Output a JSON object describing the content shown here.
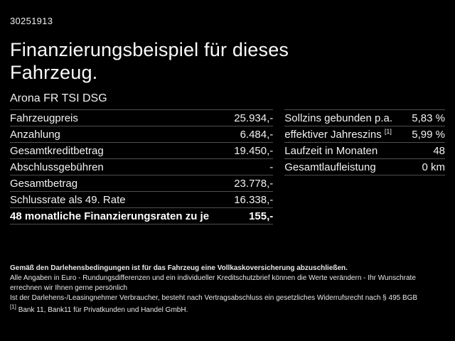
{
  "colors": {
    "background": "#000000",
    "text": "#f5f5f5",
    "divider": "#4f4f4f"
  },
  "header": {
    "vehicle_id": "30251913",
    "title": "Finanzierungsbeispiel für dieses Fahrzeug.",
    "subtitle": "Arona FR TSI DSG"
  },
  "finance_table": {
    "rows": [
      {
        "label": "Fahrzeugpreis",
        "value": "25.934,-"
      },
      {
        "label": "Anzahlung",
        "value": "6.484,-"
      },
      {
        "label": "Gesamtkreditbetrag",
        "value": "19.450,-"
      },
      {
        "label": "Abschlussgebühren",
        "value": "-"
      },
      {
        "label": "Gesamtbetrag",
        "value": "23.778,-"
      },
      {
        "label": "Schlussrate als 49. Rate",
        "value": "16.338,-"
      },
      {
        "label": "48 monatliche Finanzierungsraten zu je",
        "value": "155,-"
      }
    ]
  },
  "conditions_table": {
    "rows": [
      {
        "label": "Sollzins gebunden p.a.",
        "sup": "",
        "value": "5,83 %"
      },
      {
        "label": "effektiver Jahreszins",
        "sup": "[1]",
        "value": "5,99 %"
      },
      {
        "label": "Laufzeit in Monaten",
        "sup": "",
        "value": "48"
      },
      {
        "label": "Gesamtlaufleistung",
        "sup": "",
        "value": "0 km"
      }
    ]
  },
  "footer": {
    "note_bold": "Gemäß den Darlehensbedingungen ist für das Fahrzeug eine Vollkaskoversicherung abzuschließen.",
    "note_line2": "Alle Angaben in Euro - Rundungsdifferenzen und ein individueller Kreditschutzbrief können die Werte verändern - Ihr Wunschrate errechnen wir Ihnen gerne persönlich",
    "note_line3": "Ist der Darlehens-/Leasingnehmer Verbraucher, besteht nach Vertragsabschluss ein gesetzliches Widerrufsrecht nach § 495 BGB",
    "footnote_marker": "[1]",
    "footnote_text": "Bank 11, Bank11 für Privatkunden und Handel GmbH."
  }
}
